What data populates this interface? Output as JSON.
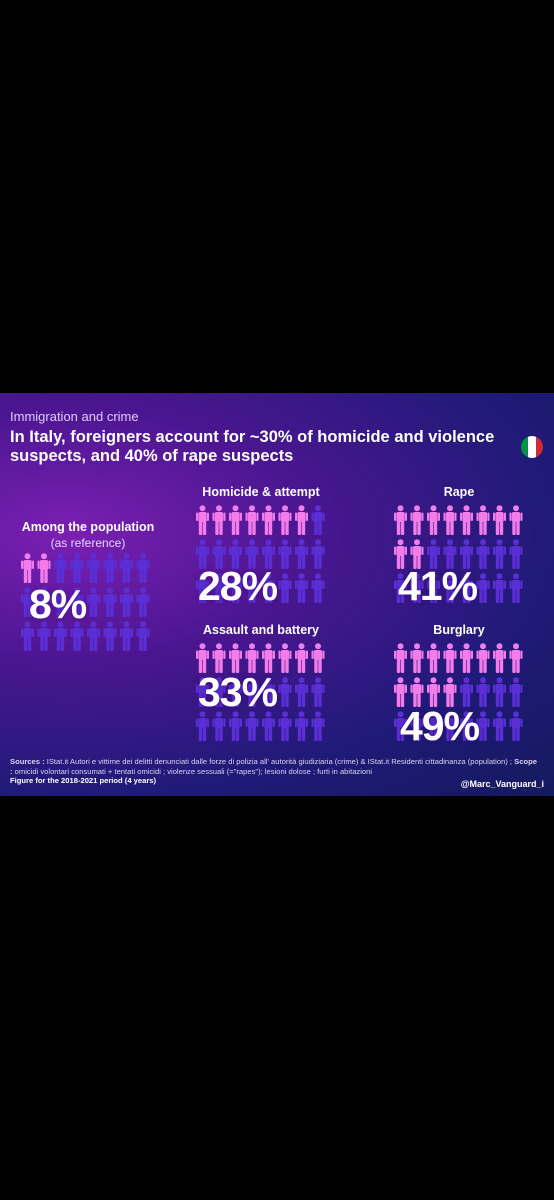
{
  "header": {
    "kicker": "Immigration and crime",
    "headline": "In Italy, foreigners account for ~30% of homicide and violence suspects, and 40% of rape suspects"
  },
  "colors": {
    "highlight_person": "#f27ce9",
    "base_person": "#5a2fd6",
    "background_light": "#7b1fb3",
    "background_dark": "#141a5e",
    "flag": [
      "#009246",
      "#ffffff",
      "#ce2b37"
    ]
  },
  "icons": {
    "person": "person-icon",
    "flag": "italy-flag-icon"
  },
  "chart_data": [
    {
      "type": "pictogram",
      "title": "Among the population",
      "subtitle": "(as reference)",
      "value": 8,
      "value_label": "8%",
      "icon_count": 24,
      "highlighted_icons": 2,
      "highlight_unit": "foreigners"
    },
    {
      "type": "pictogram",
      "title": "Homicide & attempt",
      "value": 28,
      "value_label": "28%",
      "icon_count": 24,
      "highlighted_icons": 7
    },
    {
      "type": "pictogram",
      "title": "Rape",
      "value": 41,
      "value_label": "41%",
      "icon_count": 24,
      "highlighted_icons": 10
    },
    {
      "type": "pictogram",
      "title": "Assault and battery",
      "value": 33,
      "value_label": "33%",
      "icon_count": 24,
      "highlighted_icons": 8
    },
    {
      "type": "pictogram",
      "title": "Burglary",
      "value": 49,
      "value_label": "49%",
      "icon_count": 24,
      "highlighted_icons": 12
    }
  ],
  "footer": {
    "sources_label": "Sources :",
    "sources_text": " IStat.it Autori e vittime dei delitti denunciati dalle forze di polizia all' autorità giudiziaria (crime) & IStat.it Residenti cittadinanza (population) ; ",
    "scope_label": "Scope :",
    "scope_text": " omicidi volontari consumati + tentati omicidi ; violenze sessuali (=\"rapes\"); lesioni dolose ; furti in abitazioni",
    "period": "Figure for the 2018-2021 period (4 years)",
    "handle": "@Marc_Vanguard_i"
  }
}
